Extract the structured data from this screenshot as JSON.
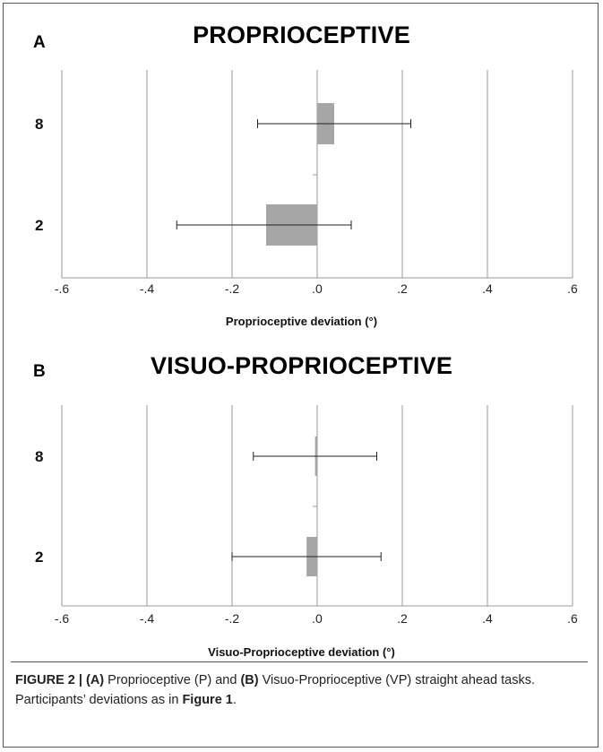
{
  "panels": [
    {
      "letter": "A",
      "title": "PROPRIOCEPTIVE",
      "xlabel": "Proprioceptive deviation (°)"
    },
    {
      "letter": "B",
      "title": "VISUO-PROPRIOCEPTIVE",
      "xlabel": "Visuo-Proprioceptive deviation (°)"
    }
  ],
  "caption": {
    "figure_label": "FIGURE 2 | ",
    "part_a_label": "(A)",
    "part_a_text": " Proprioceptive (P) and ",
    "part_b_label": "(B)",
    "part_b_text": " Visuo-Proprioceptive (VP) straight ahead tasks. Participants’ deviations as in ",
    "figure_ref": "Figure 1",
    "end": "."
  },
  "chart_data": [
    {
      "type": "bar",
      "orientation": "horizontal",
      "title": "PROPRIOCEPTIVE",
      "xlabel": "Proprioceptive deviation (°)",
      "ylabel": "",
      "categories": [
        "8",
        "2"
      ],
      "values": [
        0.04,
        -0.12
      ],
      "error_low": [
        -0.14,
        -0.33
      ],
      "error_high": [
        0.22,
        0.08
      ],
      "xlim": [
        -0.6,
        0.6
      ],
      "xticks": [
        "-.6",
        "-.4",
        "-.2",
        ".0",
        ".2",
        ".4",
        ".6"
      ],
      "grid": "vertical",
      "bar_color": "#a6a6a6"
    },
    {
      "type": "bar",
      "orientation": "horizontal",
      "title": "VISUO-PROPRIOCEPTIVE",
      "xlabel": "Visuo-Proprioceptive deviation (°)",
      "ylabel": "",
      "categories": [
        "8",
        "2"
      ],
      "values": [
        -0.005,
        -0.025
      ],
      "error_low": [
        -0.15,
        -0.2
      ],
      "error_high": [
        0.14,
        0.15
      ],
      "xlim": [
        -0.6,
        0.6
      ],
      "xticks": [
        "-.6",
        "-.4",
        "-.2",
        ".0",
        ".2",
        ".4",
        ".6"
      ],
      "grid": "vertical",
      "bar_color": "#a6a6a6"
    }
  ]
}
